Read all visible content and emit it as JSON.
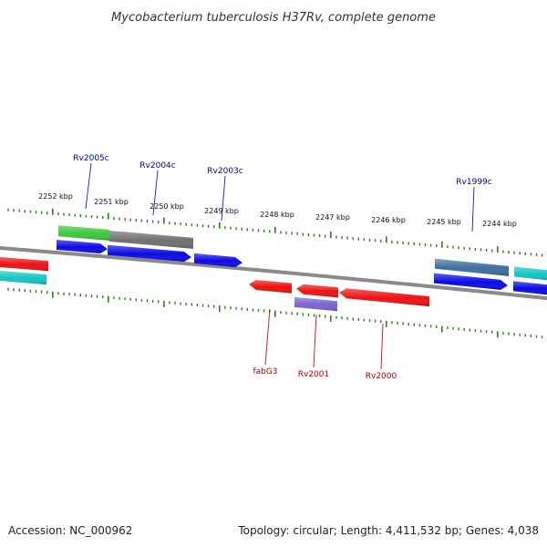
{
  "title": "Mycobacterium tuberculosis H37Rv, complete genome",
  "footer": {
    "accession": "Accession: NC_000962",
    "summary": "Topology: circular; Length: 4,411,532 bp; Genes: 4,038"
  },
  "ticks": [
    "2252 kbp",
    "2251 kbp",
    "2250 kbp",
    "2249 kbp",
    "2248 kbp",
    "2247 kbp",
    "2246 kbp",
    "2245 kbp",
    "2244 kbp"
  ],
  "genes": {
    "top_labels": [
      "Rv2005c",
      "Rv2004c",
      "Rv2003c",
      "Rv1999c"
    ],
    "bottom_labels": [
      "fabG3",
      "Rv2001",
      "Rv2000"
    ]
  },
  "colors": {
    "backbone": "#8a8a8a",
    "tick": "#2e7d1e",
    "cds_blue": "#0a0ae6",
    "cds_red": "#ee1010",
    "gene_green": "#3cc83c",
    "gene_gray": "#707070",
    "gene_cyan": "#12c6c6",
    "gene_steel": "#3f6ea0",
    "gene_purple": "#7a62d0",
    "label_top": "#00008b",
    "label_bottom": "#b00000",
    "leader_top": "#1a1aa8",
    "leader_bottom": "#c01010"
  }
}
